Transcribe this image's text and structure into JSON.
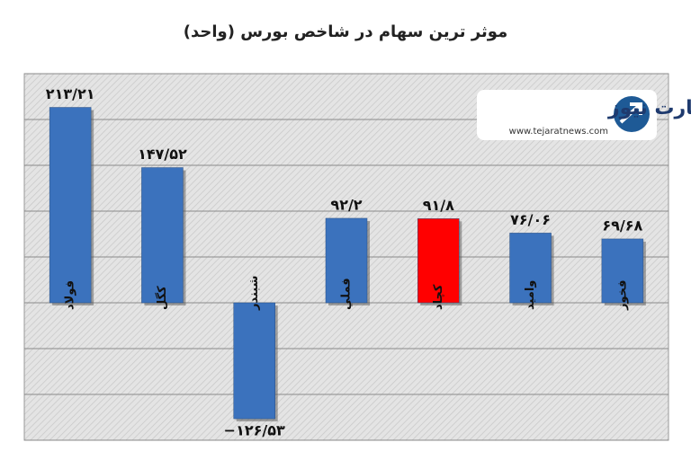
{
  "chart_data": {
    "type": "bar",
    "title": "موثر ترین سهام در شاخص بورس (واحد)",
    "watermark": {
      "brand": "تجارت نیوز",
      "url": "www.tejaratnews.com"
    },
    "categories": [
      "فولاد",
      "کگل",
      "شبندر",
      "فملي",
      "کچاد",
      "واميد",
      "فخوز"
    ],
    "values": [
      213.21,
      147.52,
      -126.53,
      92.2,
      91.8,
      76.06,
      69.68
    ],
    "value_labels": [
      "۲۱۳/۲۱",
      "۱۴۷/۵۲",
      "−۱۲۶/۵۳",
      "۹۲/۲",
      "۹۱/۸",
      "۷۶/۰۶",
      "۶۹/۶۸"
    ],
    "colors": [
      "#3b72bd",
      "#3b72bd",
      "#3b72bd",
      "#3b72bd",
      "#ff0000",
      "#3b72bd",
      "#3b72bd"
    ],
    "ylim": [
      -150,
      250
    ],
    "yticks": [
      -150,
      -100,
      -50,
      0,
      50,
      100,
      150,
      200,
      250
    ],
    "grid": true
  }
}
